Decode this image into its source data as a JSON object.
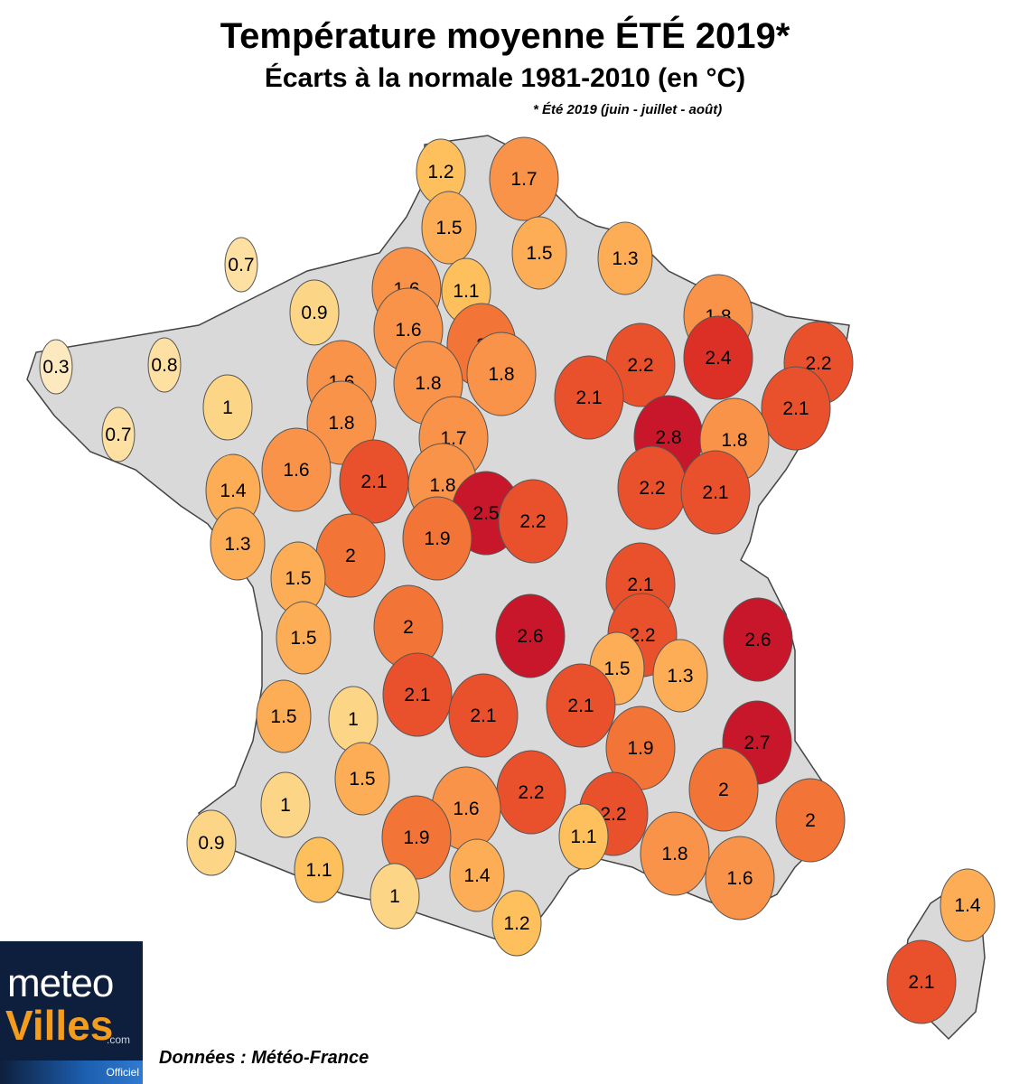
{
  "header": {
    "title": "Température moyenne ÉTÉ 2019*",
    "subtitle": "Écarts à la normale 1981-2010 (en °C)",
    "note": "* Été 2019 (juin - juillet - août)"
  },
  "footer": {
    "source": "Données : Météo-France",
    "logo_line1": "meteo",
    "logo_line2": "Villes",
    "logo_line3": ".com",
    "logo_line4": "Officiel"
  },
  "colors": {
    "land": "#d9d9d9",
    "border": "#444444",
    "scale": [
      "#fde9bf",
      "#fde0a2",
      "#fdd587",
      "#fdc05c",
      "#fcad55",
      "#f9934a",
      "#f27436",
      "#e9512c",
      "#dc3026",
      "#c8172a"
    ]
  },
  "stations": [
    {
      "value": "1.2"
    },
    {
      "value": "1.7"
    },
    {
      "value": "1.5"
    },
    {
      "value": "1.5"
    },
    {
      "value": "1.3"
    },
    {
      "value": "0.7"
    },
    {
      "value": "1.6"
    },
    {
      "value": "1.1"
    },
    {
      "value": "0.9"
    },
    {
      "value": "1.6"
    },
    {
      "value": "2"
    },
    {
      "value": "1.8"
    },
    {
      "value": "2.2"
    },
    {
      "value": "2.4"
    },
    {
      "value": "2.2"
    },
    {
      "value": "0.3"
    },
    {
      "value": "0.8"
    },
    {
      "value": "1.6"
    },
    {
      "value": "1.8"
    },
    {
      "value": "1.8"
    },
    {
      "value": "2.1"
    },
    {
      "value": "2.1"
    },
    {
      "value": "1"
    },
    {
      "value": "0.7"
    },
    {
      "value": "1.8"
    },
    {
      "value": "1.7"
    },
    {
      "value": "2.8"
    },
    {
      "value": "1.8"
    },
    {
      "value": "1.6"
    },
    {
      "value": "2.1"
    },
    {
      "value": "1.8"
    },
    {
      "value": "1.4"
    },
    {
      "value": "2.2"
    },
    {
      "value": "2.1"
    },
    {
      "value": "2.5"
    },
    {
      "value": "2.2"
    },
    {
      "value": "1.9"
    },
    {
      "value": "1.3"
    },
    {
      "value": "2"
    },
    {
      "value": "1.5"
    },
    {
      "value": "2.1"
    },
    {
      "value": "2"
    },
    {
      "value": "2.6"
    },
    {
      "value": "2.2"
    },
    {
      "value": "2.6"
    },
    {
      "value": "1.5"
    },
    {
      "value": "1.5"
    },
    {
      "value": "1.3"
    },
    {
      "value": "2.1"
    },
    {
      "value": "2.1"
    },
    {
      "value": "2.1"
    },
    {
      "value": "1.5"
    },
    {
      "value": "1"
    },
    {
      "value": "2.7"
    },
    {
      "value": "1.9"
    },
    {
      "value": "1.5"
    },
    {
      "value": "2.2"
    },
    {
      "value": "2"
    },
    {
      "value": "1"
    },
    {
      "value": "1.6"
    },
    {
      "value": "2.2"
    },
    {
      "value": "2"
    },
    {
      "value": "0.9"
    },
    {
      "value": "1.9"
    },
    {
      "value": "1.1"
    },
    {
      "value": "1.1"
    },
    {
      "value": "1.8"
    },
    {
      "value": "1.4"
    },
    {
      "value": "1.6"
    },
    {
      "value": "1"
    },
    {
      "value": "1.2"
    },
    {
      "value": "1.4"
    },
    {
      "value": "2.1"
    }
  ]
}
